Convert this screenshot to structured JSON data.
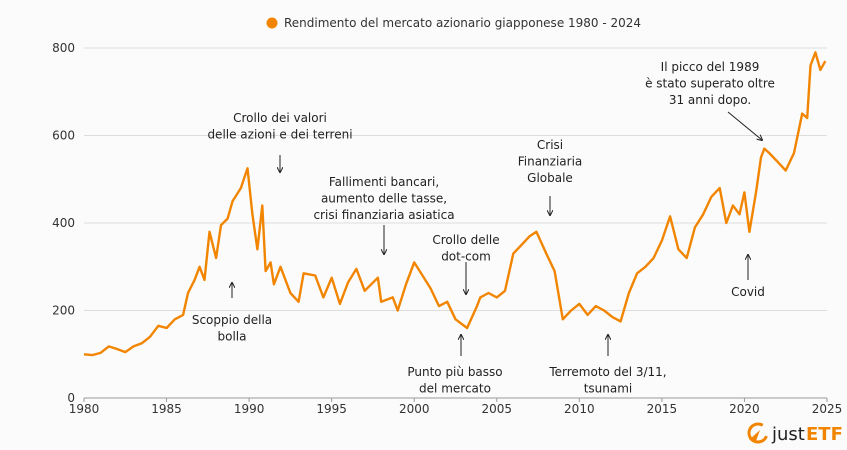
{
  "chart_data": {
    "type": "line",
    "title": "",
    "legend": {
      "label": "Rendimento del mercato azionario giapponese 1980 - 2024",
      "placement": "top-center"
    },
    "xlabel": "",
    "ylabel": "",
    "xlim": [
      1980,
      2025
    ],
    "ylim": [
      0,
      800
    ],
    "xticks": [
      "1980",
      "1985",
      "1990",
      "1995",
      "2000",
      "2005",
      "2010",
      "2015",
      "2020",
      "2025"
    ],
    "yticks": [
      "0",
      "200",
      "400",
      "600",
      "800"
    ],
    "grid": "horizontal",
    "color": "#F28500",
    "series": [
      {
        "x": [
          1980,
          1980.5,
          1981,
          1981.5,
          1982,
          1982.5,
          1983,
          1983.5,
          1984,
          1984.5,
          1985,
          1985.5,
          1986,
          1986.3,
          1986.7,
          1987,
          1987.3,
          1987.6,
          1988,
          1988.3,
          1988.7,
          1989,
          1989.5,
          1989.9,
          1990.2,
          1990.5,
          1990.8,
          1991,
          1991.3,
          1991.5,
          1991.9,
          1992.5,
          1993,
          1993.3,
          1994,
          1994.5,
          1995,
          1995.5,
          1996,
          1996.5,
          1997,
          1997.8,
          1998,
          1998.7,
          1999,
          1999.5,
          2000,
          2000.5,
          2001,
          2001.5,
          2002,
          2002.5,
          2003.2,
          2003.8,
          2004,
          2004.5,
          2005,
          2005.5,
          2006,
          2006.5,
          2007,
          2007.4,
          2008,
          2008.5,
          2009,
          2009.5,
          2010,
          2010.5,
          2011,
          2011.5,
          2012,
          2012.5,
          2013,
          2013.5,
          2014,
          2014.5,
          2015,
          2015.5,
          2016,
          2016.5,
          2017,
          2017.5,
          2018,
          2018.5,
          2018.9,
          2019.3,
          2019.7,
          2020,
          2020.3,
          2020.7,
          2021,
          2021.2,
          2021.5,
          2022,
          2022.5,
          2023,
          2023.5,
          2023.8,
          2024,
          2024.3,
          2024.6,
          2024.9
        ],
        "values": [
          100,
          98,
          103,
          118,
          112,
          105,
          118,
          125,
          140,
          165,
          160,
          180,
          190,
          240,
          270,
          300,
          270,
          380,
          320,
          395,
          410,
          450,
          480,
          525,
          420,
          340,
          440,
          290,
          310,
          260,
          300,
          240,
          220,
          285,
          280,
          230,
          275,
          215,
          265,
          295,
          245,
          275,
          220,
          230,
          200,
          260,
          310,
          280,
          250,
          210,
          220,
          180,
          160,
          210,
          230,
          240,
          230,
          245,
          330,
          350,
          370,
          380,
          330,
          290,
          180,
          200,
          215,
          190,
          210,
          200,
          185,
          175,
          240,
          285,
          300,
          320,
          360,
          415,
          340,
          320,
          390,
          420,
          460,
          480,
          400,
          440,
          420,
          470,
          380,
          470,
          550,
          570,
          560,
          540,
          520,
          560,
          650,
          640,
          760,
          790,
          750,
          770
        ]
      }
    ],
    "annotations": [
      {
        "lines": [
          "Crollo dei valori",
          "delle azioni e dei terreni"
        ]
      },
      {
        "lines": [
          "Fallimenti bancari,",
          "aumento delle tasse,",
          "crisi finanziaria asiatica"
        ]
      },
      {
        "lines": [
          "Crollo delle",
          "dot-com"
        ]
      },
      {
        "lines": [
          "Crisi",
          "Finanziaria",
          "Globale"
        ]
      },
      {
        "lines": [
          "Il picco del 1989",
          "è stato superato oltre",
          "31 anni dopo."
        ]
      },
      {
        "lines": [
          "Scoppio della",
          "bolla"
        ]
      },
      {
        "lines": [
          "Punto più basso",
          "del mercato"
        ]
      },
      {
        "lines": [
          "Terremoto del 3/11,",
          "tsunami"
        ]
      },
      {
        "lines": [
          "Covid"
        ]
      }
    ]
  },
  "logo": {
    "text_a": "just",
    "text_b": "ETF",
    "color": "#F28500"
  }
}
